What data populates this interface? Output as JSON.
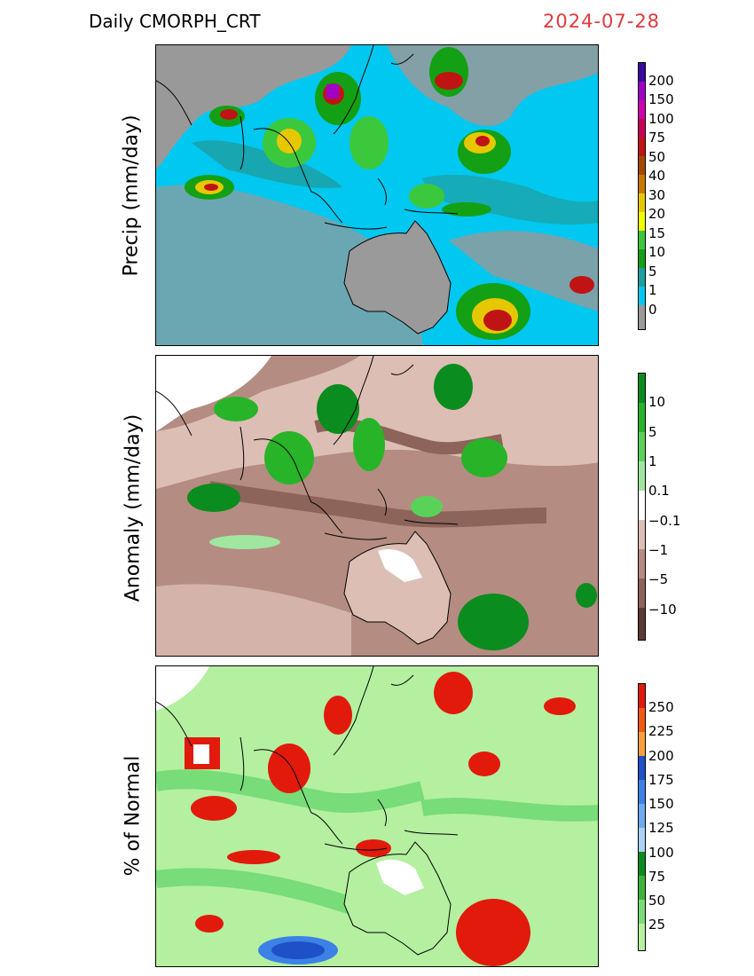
{
  "header": {
    "product": "Daily  CMORPH_CRT",
    "date": "2024-07-28"
  },
  "panels": [
    {
      "ylabel": "Precip  (mm/day)",
      "legend": {
        "labels": [
          "200",
          "150",
          "100",
          "75",
          "50",
          "40",
          "30",
          "20",
          "15",
          "10",
          "5",
          "1",
          "0"
        ],
        "colors": [
          "#3a0a9c",
          "#a000c8",
          "#d000b0",
          "#c8005a",
          "#c01414",
          "#a44a00",
          "#c87800",
          "#e6c800",
          "#f0ff00",
          "#3cc83c",
          "#14a014",
          "#1e9ea0",
          "#00c8f0",
          "#999999"
        ]
      }
    },
    {
      "ylabel": "Anomaly  (mm/day)",
      "legend": {
        "labels": [
          "10",
          "5",
          "1",
          "0.1",
          "−0.1",
          "−1",
          "−5",
          "−10"
        ],
        "colors": [
          "#0a8c1e",
          "#28b428",
          "#5ad25a",
          "#a0e6a0",
          "#ffffff",
          "#dcbeb4",
          "#b48c82",
          "#8c645a",
          "#5a3c34"
        ]
      }
    },
    {
      "ylabel": "% of  Normal",
      "legend": {
        "labels": [
          "250",
          "225",
          "200",
          "175",
          "150",
          "125",
          "100",
          "75",
          "50",
          "25"
        ],
        "colors": [
          "#e11a0c",
          "#f05a14",
          "#f5a03c",
          "#1e50c8",
          "#3c82e6",
          "#6eaaf0",
          "#aad2f5",
          "#0a8c1e",
          "#3cb43c",
          "#78dc78",
          "#b4f0a0"
        ]
      }
    }
  ],
  "colors": {
    "title_date": "#e0393e",
    "ocean_gray": "#999999",
    "coast": "#000000"
  }
}
